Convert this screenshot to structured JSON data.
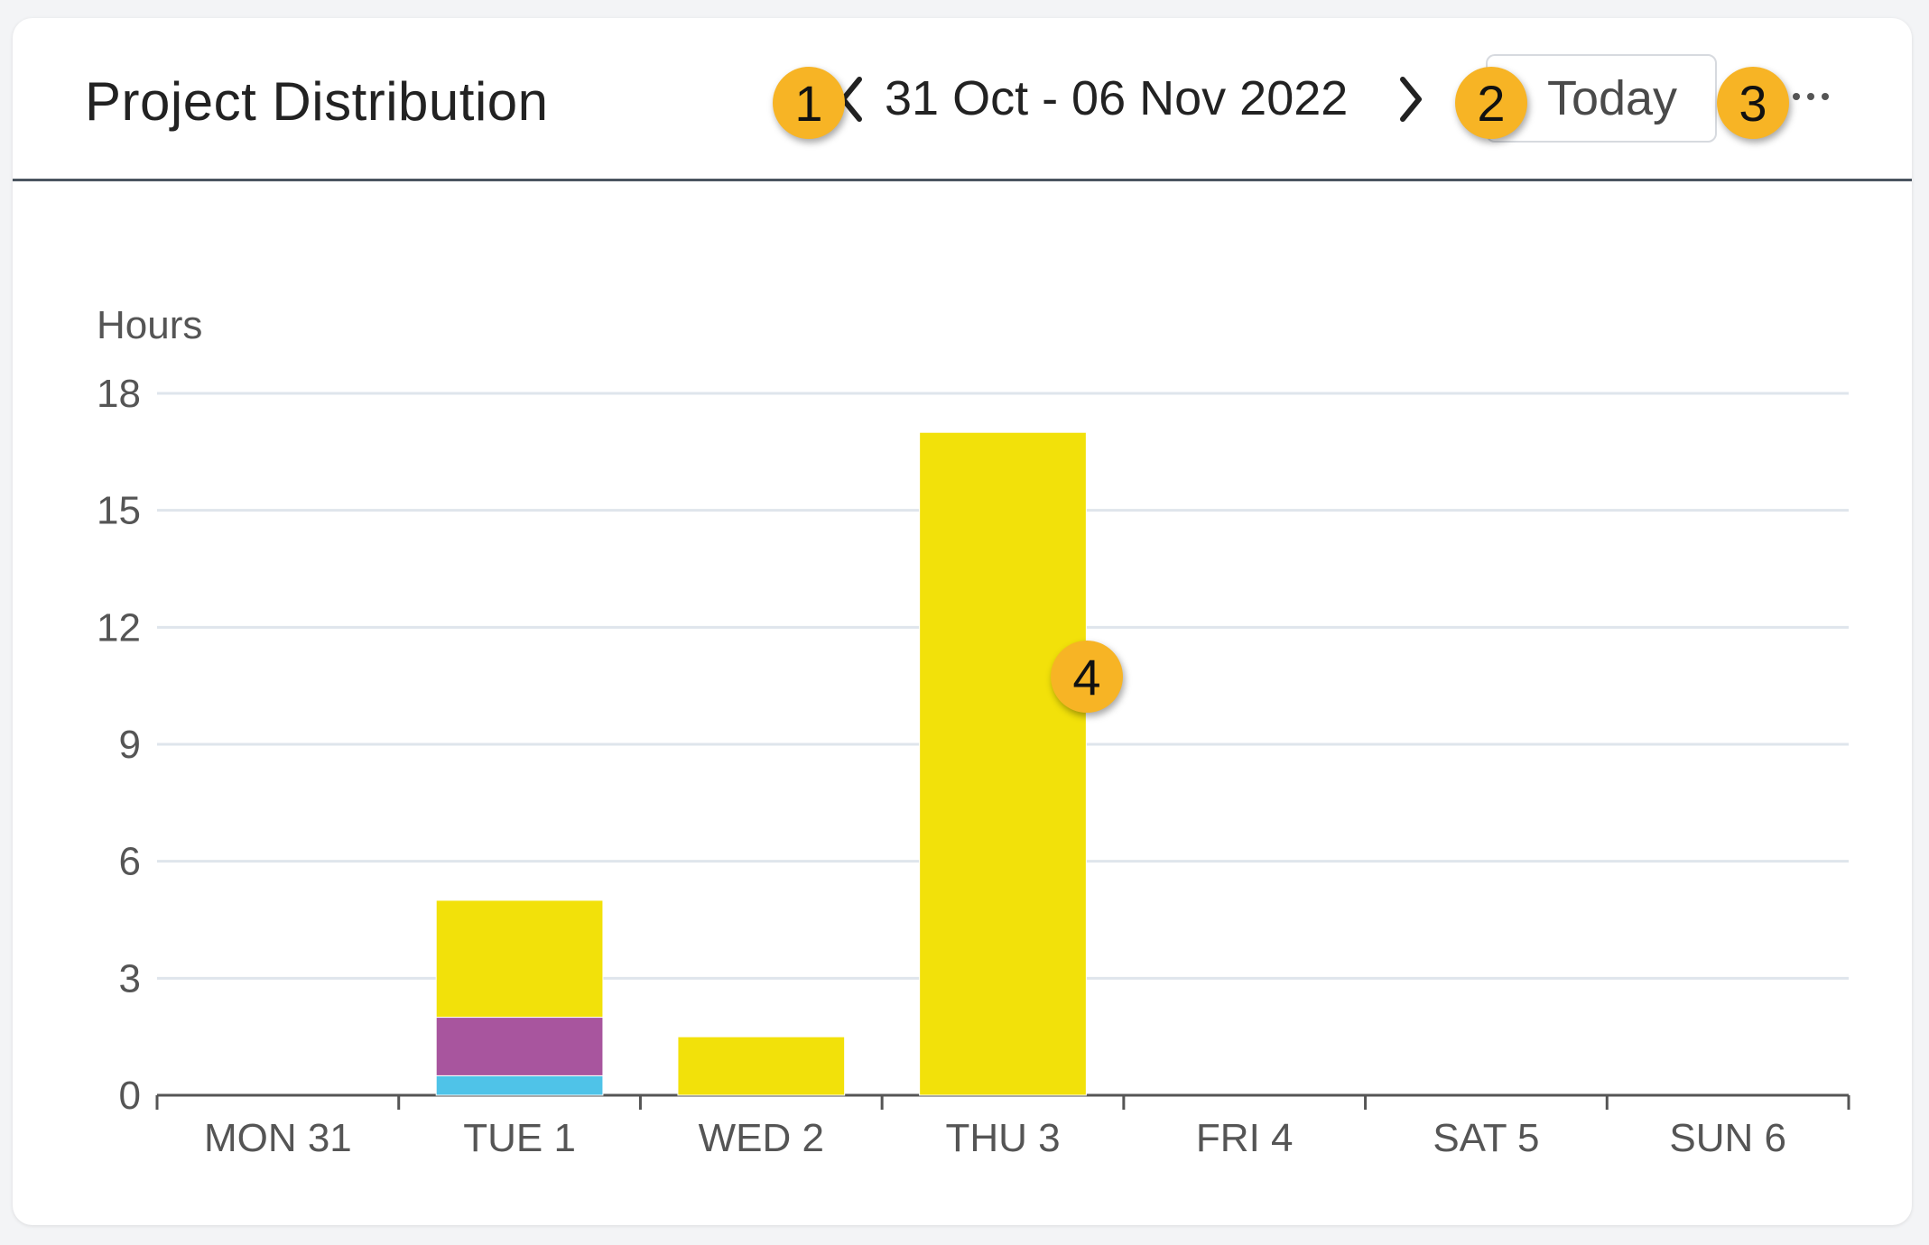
{
  "header": {
    "title": "Project Distribution",
    "date_range": "31 Oct - 06 Nov 2022",
    "today_label": "Today"
  },
  "annotations": {
    "badge_1": "1",
    "badge_2": "2",
    "badge_3": "3",
    "badge_4": "4"
  },
  "icons": {
    "prev": "chevron-left-icon",
    "next": "chevron-right-icon",
    "more": "more-horizontal-icon"
  },
  "chart_data": {
    "type": "bar",
    "stacked": true,
    "ylabel": "Hours",
    "ylim": [
      0,
      18
    ],
    "yticks": [
      0,
      3,
      6,
      9,
      12,
      15,
      18
    ],
    "grid": true,
    "categories": [
      "MON 31",
      "TUE 1",
      "WED 2",
      "THU 3",
      "FRI 4",
      "SAT 5",
      "SUN 6"
    ],
    "series": [
      {
        "color": "#4fc3e8",
        "values": [
          0,
          0.5,
          0,
          0,
          0,
          0,
          0
        ]
      },
      {
        "color": "#a8559e",
        "values": [
          0,
          1.5,
          0,
          0,
          0,
          0,
          0
        ]
      },
      {
        "color": "#f2e10a",
        "values": [
          0,
          3,
          1.5,
          17,
          0,
          0,
          0
        ]
      }
    ]
  }
}
